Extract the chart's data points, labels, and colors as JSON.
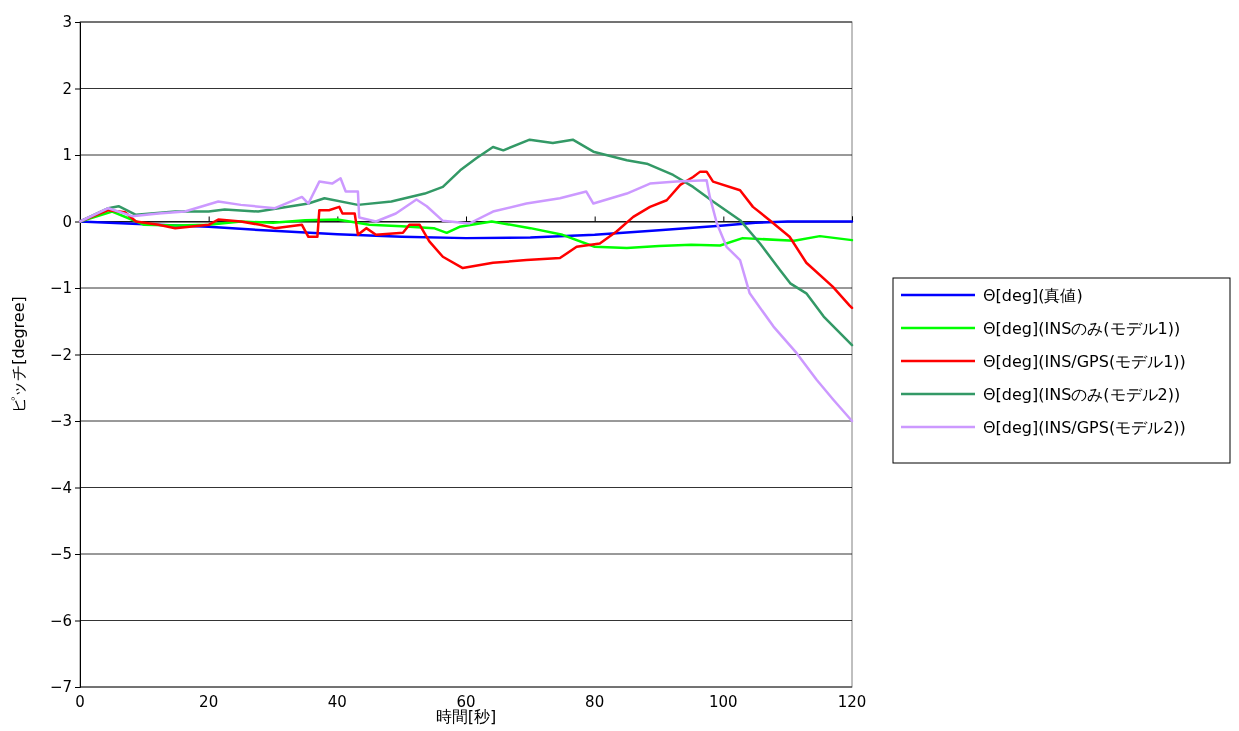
{
  "chart_data": {
    "type": "line",
    "xlabel": "時間[秒]",
    "ylabel": "ピッチ[degree]",
    "xlim": [
      0,
      120
    ],
    "ylim": [
      -7,
      3
    ],
    "xticks": [
      0,
      20,
      40,
      60,
      80,
      100,
      120
    ],
    "yticks": [
      -7,
      -6,
      -5,
      -4,
      -3,
      -2,
      -1,
      0,
      1,
      2,
      3
    ],
    "grid": "y",
    "legend": "right",
    "series": [
      {
        "name": "Θ[deg](真値)",
        "color": "#0000ff",
        "x": [
          0,
          10,
          20,
          30,
          40,
          50,
          60,
          70,
          80,
          90,
          100,
          105,
          110,
          120
        ],
        "values": [
          0,
          -0.04,
          -0.08,
          -0.14,
          -0.19,
          -0.23,
          -0.25,
          -0.24,
          -0.2,
          -0.13,
          -0.06,
          -0.02,
          0,
          0
        ]
      },
      {
        "name": "Θ[deg](INSのみ(モデル1))",
        "color": "#00ff00",
        "x": [
          0,
          5,
          10,
          15,
          20,
          25,
          30,
          35,
          40,
          45,
          50,
          55,
          57,
          59,
          64,
          70,
          75,
          80,
          85,
          90,
          95,
          99.5,
          103,
          111,
          115,
          120
        ],
        "values": [
          0,
          0.15,
          -0.05,
          -0.06,
          -0.05,
          0,
          -0.02,
          0.02,
          0.03,
          -0.05,
          -0.07,
          -0.1,
          -0.17,
          -0.08,
          0,
          -0.1,
          -0.2,
          -0.38,
          -0.4,
          -0.37,
          -0.35,
          -0.36,
          -0.25,
          -0.29,
          -0.22,
          -0.28
        ]
      },
      {
        "name": "Θ[deg](INS/GPS(モデル1))",
        "color": "#ff0000",
        "x": [
          0,
          4.4,
          7,
          8.7,
          12.2,
          14.8,
          20,
          21.5,
          25,
          28,
          30.3,
          34.5,
          35.5,
          36.9,
          37.2,
          38.7,
          40.3,
          40.8,
          42.7,
          43.2,
          44.5,
          46,
          50.2,
          51.2,
          52.8,
          54.3,
          56.4,
          59.5,
          64.2,
          69.4,
          74.6,
          77.2,
          80.8,
          83.4,
          86,
          88.6,
          91.2,
          93.3,
          95.3,
          96.4,
          97.4,
          98.4,
          102.6,
          104.6,
          107.2,
          110.3,
          112.9,
          117,
          119.6,
          120
        ],
        "values": [
          0,
          0.17,
          0.14,
          0,
          -0.05,
          -0.1,
          -0.05,
          0.03,
          0,
          -0.05,
          -0.1,
          -0.05,
          -0.23,
          -0.23,
          0.17,
          0.17,
          0.22,
          0.12,
          0.12,
          -0.2,
          -0.1,
          -0.2,
          -0.17,
          -0.05,
          -0.05,
          -0.3,
          -0.53,
          -0.7,
          -0.62,
          -0.58,
          -0.55,
          -0.38,
          -0.33,
          -0.15,
          0.07,
          0.22,
          0.32,
          0.55,
          0.67,
          0.75,
          0.75,
          0.6,
          0.47,
          0.22,
          0.02,
          -0.23,
          -0.62,
          -0.98,
          -1.26,
          -1.3
        ]
      },
      {
        "name": "Θ[deg](INSのみ(モデル2))",
        "color": "#339966",
        "x": [
          0,
          4.4,
          6,
          8.7,
          14.8,
          20,
          22.5,
          27.7,
          35.5,
          38,
          43.2,
          48.4,
          53.6,
          56.4,
          59.1,
          61.6,
          64.2,
          65.8,
          69.9,
          73.5,
          76.6,
          79.8,
          85,
          88.1,
          92.2,
          95.3,
          98.4,
          102.6,
          105.7,
          108.8,
          110.4,
          112.9,
          115.6,
          120
        ],
        "values": [
          0,
          0.2,
          0.23,
          0.1,
          0.15,
          0.15,
          0.18,
          0.15,
          0.27,
          0.35,
          0.25,
          0.3,
          0.42,
          0.52,
          0.77,
          0.95,
          1.12,
          1.07,
          1.23,
          1.18,
          1.23,
          1.05,
          0.92,
          0.87,
          0.7,
          0.52,
          0.3,
          0.02,
          -0.33,
          -0.73,
          -0.93,
          -1.08,
          -1.43,
          -1.86
        ]
      },
      {
        "name": "Θ[deg](INS/GPS(モデル2))",
        "color": "#cc99ff",
        "x": [
          0,
          4.4,
          8.1,
          12.2,
          16.3,
          21.5,
          25,
          30.3,
          34.5,
          35.5,
          37.2,
          39.2,
          40.5,
          41.3,
          43.2,
          43.4,
          46,
          49.1,
          52.3,
          53.9,
          56.4,
          60.5,
          64.2,
          69.4,
          74.6,
          78.7,
          79.8,
          85,
          88.6,
          92.7,
          97.4,
          97.9,
          99,
          100.5,
          102.6,
          104.1,
          107.8,
          111.4,
          114.5,
          117.1,
          120
        ],
        "values": [
          0,
          0.2,
          0.08,
          0.12,
          0.15,
          0.3,
          0.25,
          0.2,
          0.37,
          0.27,
          0.6,
          0.57,
          0.65,
          0.45,
          0.45,
          0.06,
          0,
          0.12,
          0.33,
          0.23,
          0.01,
          -0.03,
          0.15,
          0.27,
          0.35,
          0.45,
          0.27,
          0.42,
          0.57,
          0.6,
          0.62,
          0.37,
          -0.03,
          -0.38,
          -0.58,
          -1.08,
          -1.58,
          -1.98,
          -2.38,
          -2.68,
          -3
        ]
      }
    ]
  }
}
